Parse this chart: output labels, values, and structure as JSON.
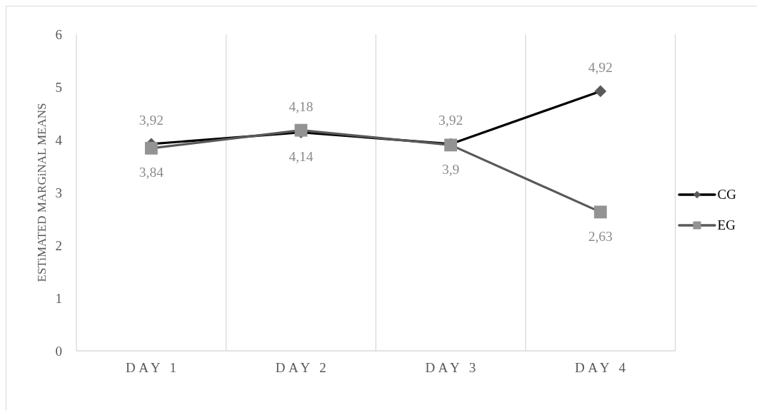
{
  "chart_data": {
    "type": "line",
    "ylabel": "ESTiMATED MARGiNAL MEANS",
    "categories": [
      "DAY 1",
      "DAY 2",
      "DAY 3",
      "DAY 4"
    ],
    "series": [
      {
        "name": "CG",
        "color": "#000000",
        "marker": "diamond",
        "values": [
          3.92,
          4.14,
          3.92,
          4.92
        ],
        "value_labels": [
          "3,92",
          "4,14",
          "3,92",
          "4,92"
        ]
      },
      {
        "name": "EG",
        "color": "#595959",
        "marker": "square",
        "values": [
          3.84,
          4.18,
          3.9,
          2.63
        ],
        "value_labels": [
          "3,84",
          "4,18",
          "3,9",
          "2,63"
        ]
      }
    ],
    "ylim": [
      0,
      6
    ],
    "yticks": [
      0,
      1,
      2,
      3,
      4,
      5,
      6
    ],
    "grid": "x",
    "legend": "right"
  }
}
